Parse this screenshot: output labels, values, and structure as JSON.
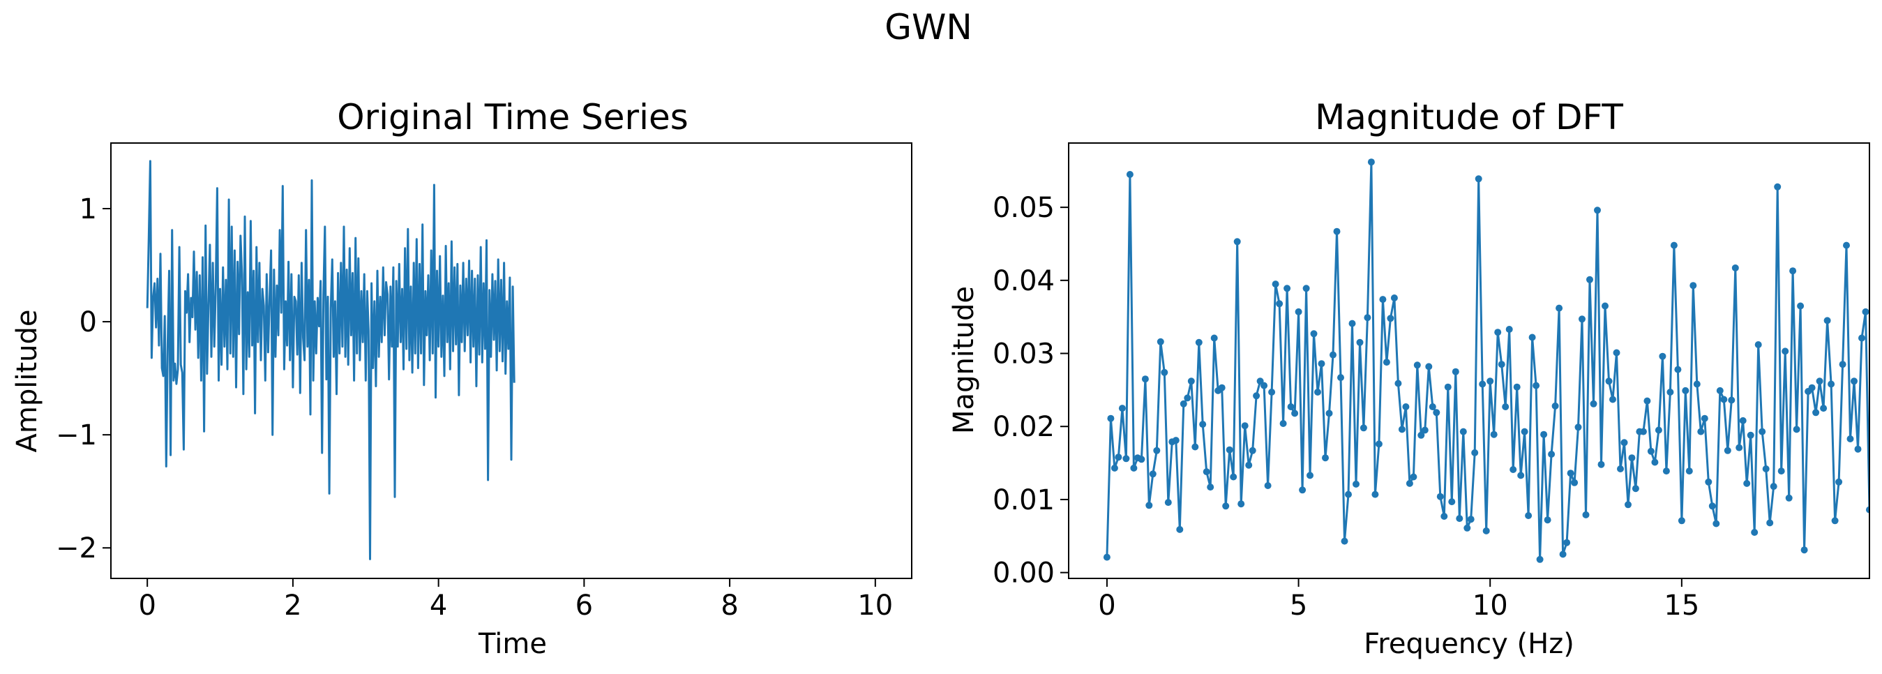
{
  "figure": {
    "suptitle": "GWN"
  },
  "colors": {
    "line": "#1f77b4",
    "axes": "#000000",
    "background": "#ffffff"
  },
  "chart_data": [
    {
      "type": "line",
      "title": "Original Time Series",
      "xlabel": "Time",
      "ylabel": "Amplitude",
      "xlim": [
        -0.5,
        10.5
      ],
      "ylim": [
        -2.27,
        1.58
      ],
      "xticks": [
        0,
        2,
        4,
        6,
        8,
        10
      ],
      "xtick_labels": [
        "0",
        "2",
        "4",
        "6",
        "8",
        "10"
      ],
      "yticks": [
        -2,
        -1,
        0,
        1
      ],
      "ytick_labels": [
        "−2",
        "−1",
        "0",
        "1"
      ],
      "grid": false,
      "markers": false,
      "x_start": 0,
      "x_step": 0.02,
      "series": [
        {
          "values": [
            0.12,
            0.74,
            1.42,
            -0.32,
            0.21,
            0.34,
            -0.05,
            0.38,
            -0.21,
            0.6,
            -0.41,
            -0.48,
            0.05,
            -1.28,
            -0.2,
            0.45,
            -1.18,
            0.81,
            -0.52,
            -0.37,
            -0.55,
            -0.42,
            0.66,
            -0.38,
            -0.45,
            -1.13,
            0.27,
            0.08,
            0.42,
            -0.18,
            0.21,
            0.04,
            0.62,
            -0.07,
            0.44,
            -0.32,
            0.41,
            -0.52,
            0.57,
            -0.97,
            0.85,
            -0.46,
            0.14,
            0.68,
            -0.31,
            0.52,
            -0.22,
            0.31,
            1.18,
            -0.52,
            0.29,
            -0.38,
            0.48,
            -0.22,
            0.37,
            -0.42,
            1.08,
            -0.28,
            0.84,
            -0.31,
            0.63,
            -0.58,
            0.53,
            -0.11,
            0.76,
            0.42,
            -0.64,
            0.93,
            -0.42,
            0.26,
            -0.31,
            0.89,
            -0.21,
            0.45,
            -0.81,
            0.66,
            -0.18,
            0.52,
            -0.34,
            0.29,
            0.14,
            -0.52,
            0.42,
            -0.27,
            0.21,
            0.63,
            -1.0,
            0.46,
            -0.31,
            0.32,
            -0.12,
            0.81,
            0.08,
            1.2,
            -0.42,
            0.18,
            -0.21,
            0.53,
            -0.34,
            0.42,
            -0.58,
            0.22,
            0.18,
            -0.29,
            0.41,
            -0.63,
            0.52,
            -0.14,
            -0.34,
            0.81,
            -0.22,
            0.37,
            -0.82,
            1.25,
            -0.52,
            0.18,
            -0.28,
            0.21,
            -0.04,
            0.36,
            -1.16,
            0.24,
            0.84,
            -0.51,
            0.22,
            -1.52,
            0.12,
            0.55,
            -0.31,
            0.18,
            -0.64,
            0.43,
            -0.28,
            0.52,
            -0.22,
            0.84,
            -0.31,
            0.46,
            -0.38,
            0.65,
            -0.12,
            0.43,
            -0.52,
            0.74,
            -0.28,
            0.56,
            -0.34,
            0.27,
            -0.18,
            0.42,
            -0.52,
            0.27,
            -0.08,
            -2.1,
            0.34,
            -0.41,
            0.18,
            -0.57,
            0.45,
            -0.31,
            0.22,
            -0.18,
            0.48,
            -0.12,
            0.35,
            0.24,
            -0.51,
            0.31,
            -0.22,
            0.48,
            -1.55,
            0.36,
            -0.22,
            0.51,
            -0.18,
            0.29,
            -0.42,
            0.65,
            -0.24,
            0.82,
            -0.34,
            0.31,
            -0.45,
            0.52,
            -0.28,
            0.73,
            -0.41,
            0.51,
            -0.28,
            0.86,
            -0.56,
            0.27,
            -0.12,
            0.41,
            -0.34,
            0.63,
            -0.28,
            1.21,
            -0.67,
            0.45,
            -0.22,
            0.58,
            -0.31,
            0.23,
            -0.48,
            0.67,
            -0.18,
            0.34,
            -0.42,
            0.71,
            -0.26,
            0.48,
            -0.2,
            0.51,
            -0.65,
            0.32,
            -0.18,
            0.52,
            -0.26,
            0.38,
            -0.12,
            0.54,
            -0.36,
            0.45,
            -0.22,
            0.38,
            -0.57,
            0.41,
            -0.29,
            0.66,
            -0.36,
            0.34,
            -0.24,
            0.72,
            -1.4,
            0.28,
            -0.31,
            0.42,
            -0.16,
            0.36,
            -0.43,
            0.55,
            -0.26,
            0.37,
            -0.35,
            0.52,
            -0.46,
            0.18,
            -0.24,
            0.39,
            -1.22,
            0.31,
            -0.54
          ]
        }
      ]
    },
    {
      "type": "line",
      "title": "Magnitude of DFT",
      "xlabel": "Frequency (Hz)",
      "ylabel": "Magnitude",
      "xlim": [
        -1.0,
        19.9
      ],
      "ylim": [
        -0.0008,
        0.0588
      ],
      "xticks": [
        0,
        5,
        10,
        15
      ],
      "xtick_labels": [
        "0",
        "5",
        "10",
        "15"
      ],
      "yticks": [
        0.0,
        0.01,
        0.02,
        0.03,
        0.04,
        0.05
      ],
      "ytick_labels": [
        "0.00",
        "0.01",
        "0.02",
        "0.03",
        "0.04",
        "0.05"
      ],
      "grid": false,
      "markers": true,
      "x_start": 0,
      "x_step": 0.1,
      "series": [
        {
          "values": [
            0.0021,
            0.0211,
            0.0143,
            0.0158,
            0.0225,
            0.0156,
            0.0545,
            0.0143,
            0.0157,
            0.0155,
            0.0265,
            0.0092,
            0.0135,
            0.0167,
            0.0316,
            0.0274,
            0.0096,
            0.0179,
            0.0181,
            0.0059,
            0.0231,
            0.0239,
            0.0262,
            0.0172,
            0.0315,
            0.0203,
            0.0138,
            0.0117,
            0.0321,
            0.0249,
            0.0253,
            0.0091,
            0.0168,
            0.0131,
            0.0453,
            0.0094,
            0.0201,
            0.0147,
            0.0167,
            0.0242,
            0.0262,
            0.0256,
            0.0119,
            0.0247,
            0.0395,
            0.0368,
            0.0204,
            0.0389,
            0.0227,
            0.0218,
            0.0357,
            0.0113,
            0.0389,
            0.0133,
            0.0327,
            0.0247,
            0.0286,
            0.0157,
            0.0218,
            0.0298,
            0.0467,
            0.0267,
            0.0043,
            0.0107,
            0.0341,
            0.0121,
            0.0315,
            0.0198,
            0.0349,
            0.0562,
            0.0107,
            0.0176,
            0.0374,
            0.0288,
            0.0348,
            0.0376,
            0.0259,
            0.0196,
            0.0227,
            0.0122,
            0.0131,
            0.0284,
            0.0188,
            0.0195,
            0.0282,
            0.0227,
            0.0219,
            0.0104,
            0.0077,
            0.0254,
            0.0097,
            0.0275,
            0.0074,
            0.0193,
            0.0061,
            0.0073,
            0.0164,
            0.0539,
            0.0258,
            0.0057,
            0.0262,
            0.0189,
            0.0329,
            0.0285,
            0.0227,
            0.0333,
            0.0141,
            0.0254,
            0.0133,
            0.0193,
            0.0078,
            0.0322,
            0.0256,
            0.0018,
            0.0189,
            0.0072,
            0.0162,
            0.0228,
            0.0362,
            0.0025,
            0.0041,
            0.0136,
            0.0123,
            0.0199,
            0.0347,
            0.0079,
            0.0401,
            0.0231,
            0.0496,
            0.0148,
            0.0365,
            0.0262,
            0.0237,
            0.0301,
            0.0142,
            0.0178,
            0.0093,
            0.0157,
            0.0115,
            0.0193,
            0.0193,
            0.0235,
            0.0166,
            0.0151,
            0.0195,
            0.0296,
            0.0139,
            0.0247,
            0.0448,
            0.0278,
            0.0071,
            0.0249,
            0.0139,
            0.0393,
            0.0258,
            0.0193,
            0.0211,
            0.0124,
            0.0091,
            0.0067,
            0.0249,
            0.0237,
            0.0167,
            0.0236,
            0.0417,
            0.0171,
            0.0208,
            0.0122,
            0.0188,
            0.0055,
            0.0312,
            0.0193,
            0.0142,
            0.0068,
            0.0118,
            0.0528,
            0.0139,
            0.0303,
            0.0102,
            0.0413,
            0.0196,
            0.0365,
            0.0031,
            0.0248,
            0.0253,
            0.0219,
            0.0262,
            0.0225,
            0.0345,
            0.0258,
            0.0071,
            0.0124,
            0.0285,
            0.0448,
            0.0183,
            0.0262,
            0.0169,
            0.0321,
            0.0357,
            0.0086
          ]
        }
      ]
    }
  ]
}
